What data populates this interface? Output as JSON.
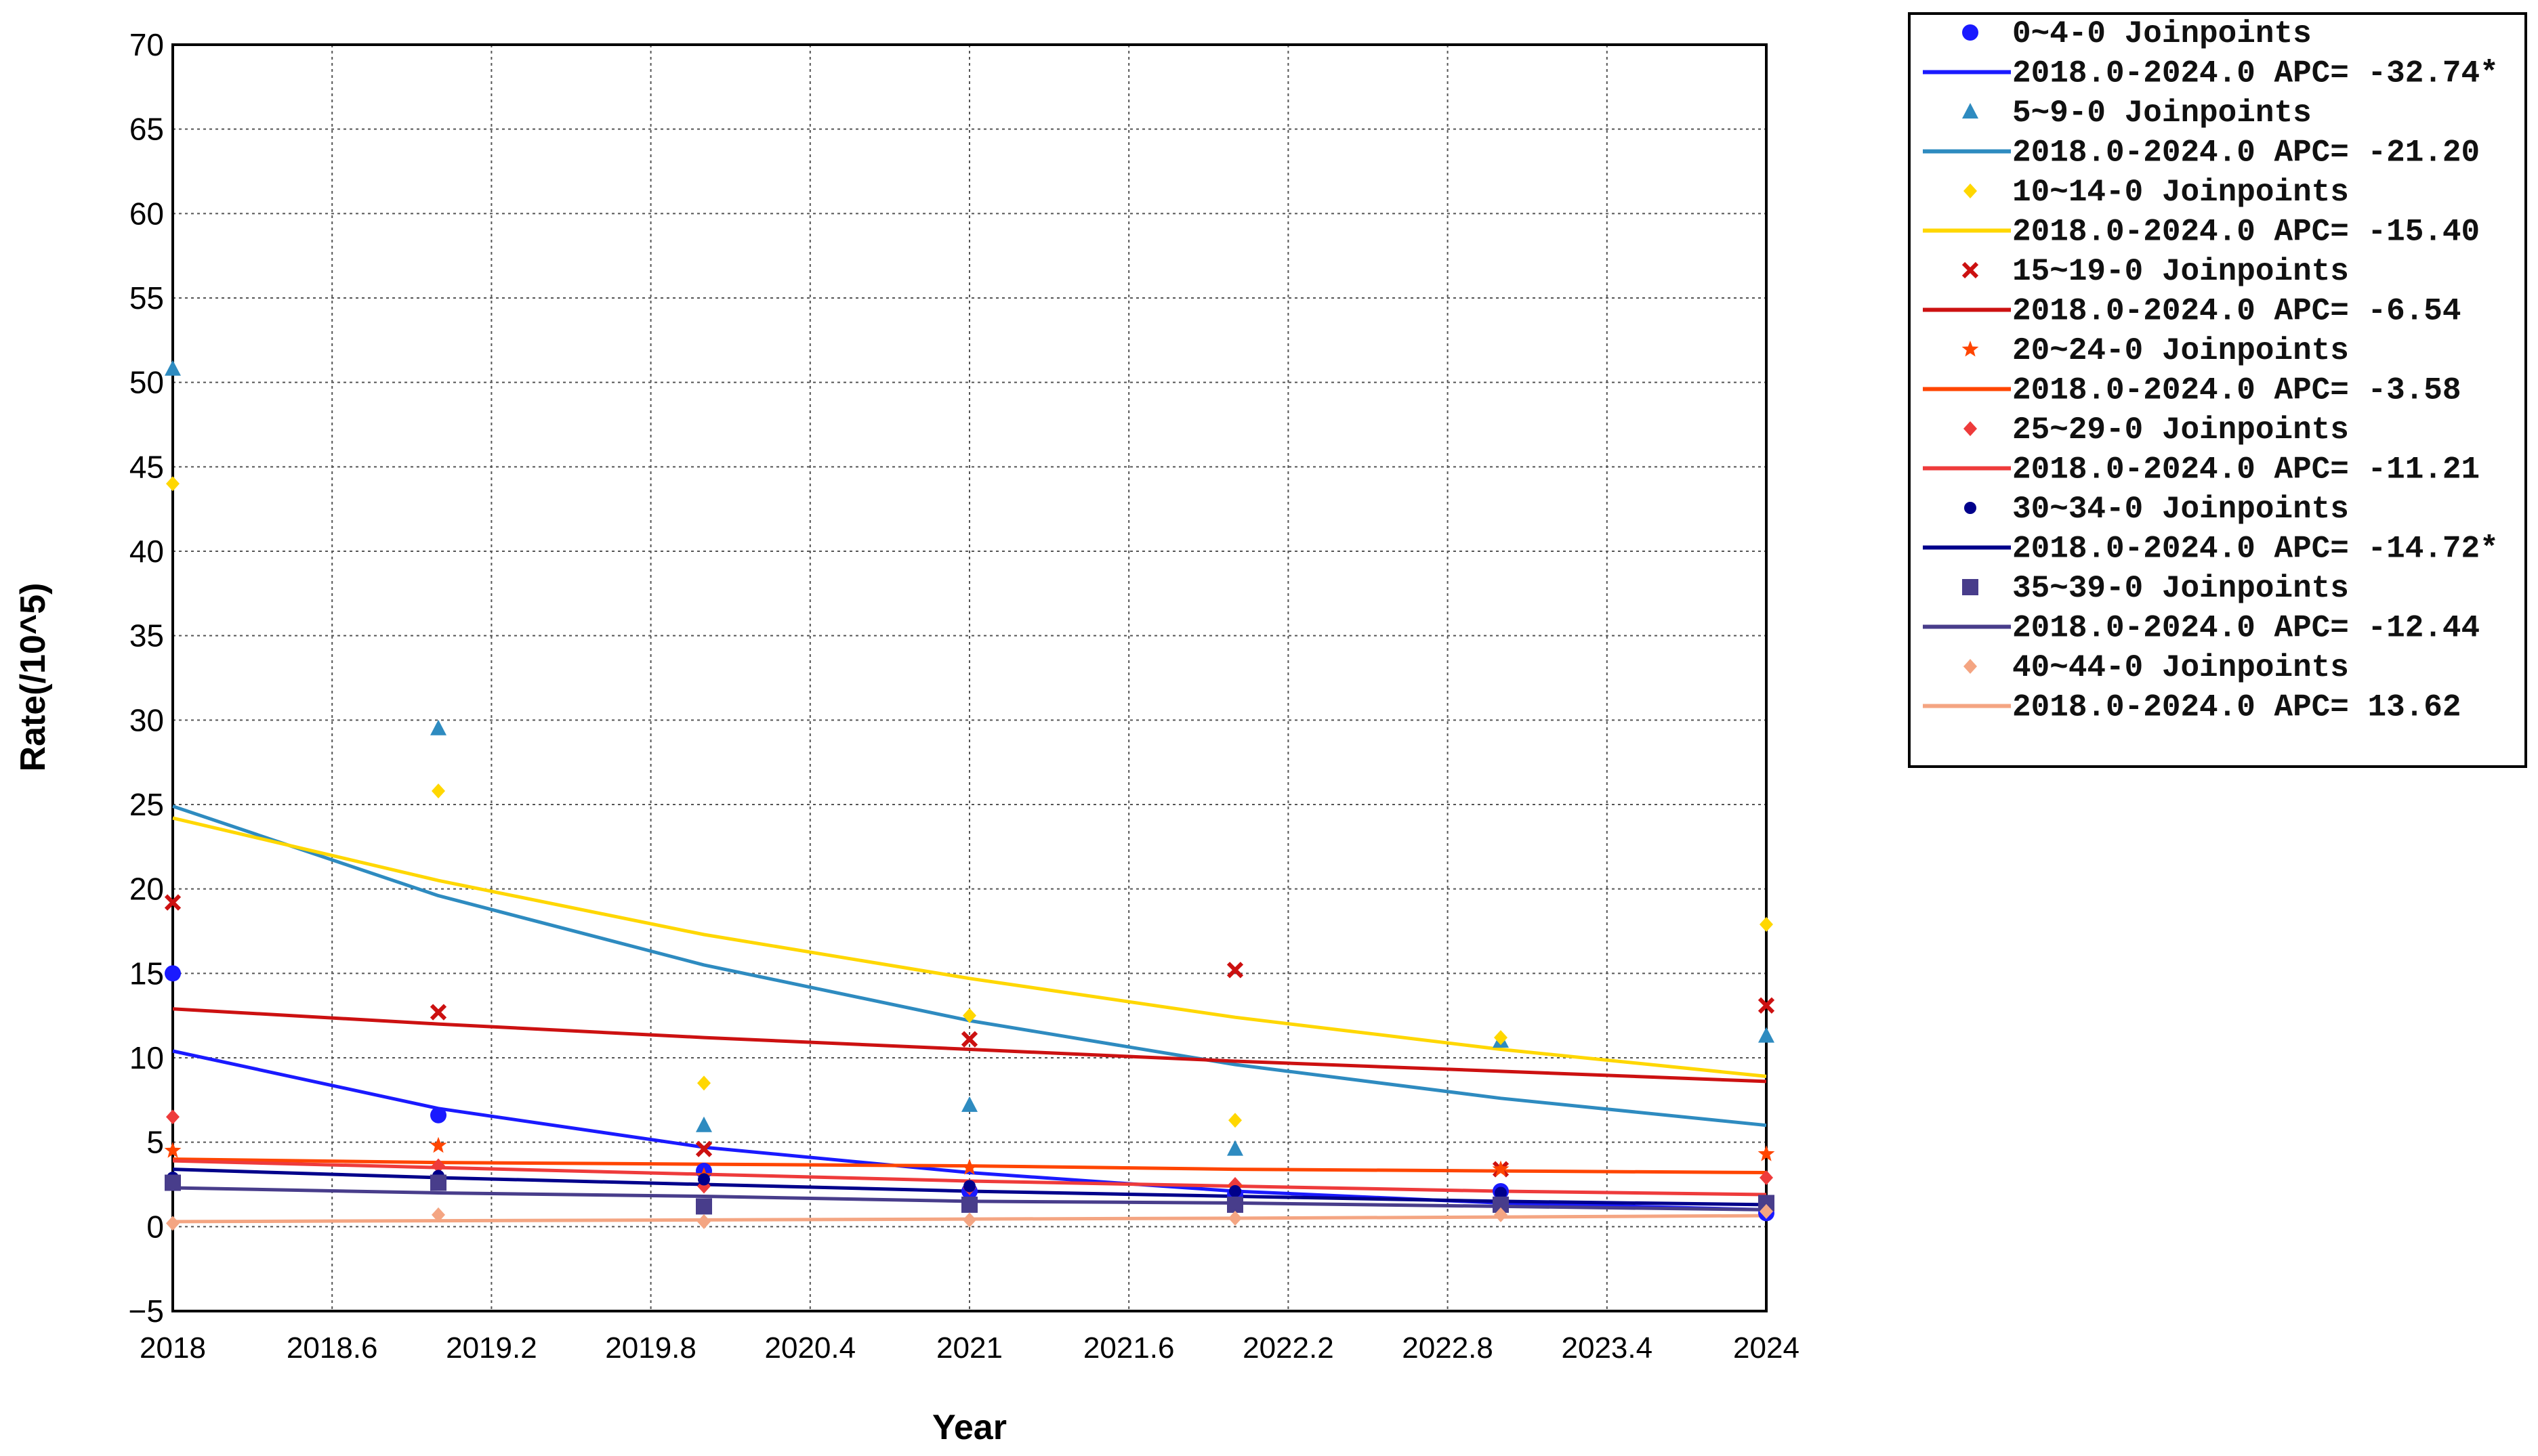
{
  "chart_data": {
    "type": "line",
    "title": "",
    "xlabel": "Year",
    "ylabel": "Rate(/10^5)",
    "xlim": [
      2018,
      2024
    ],
    "ylim": [
      -5,
      70
    ],
    "x_ticks": [
      "2018",
      "2018.6",
      "2019.2",
      "2019.8",
      "2020.4",
      "2021",
      "2021.6",
      "2022.2",
      "2022.8",
      "2023.4",
      "2024"
    ],
    "y_ticks": [
      "70",
      "65",
      "60",
      "55",
      "50",
      "45",
      "40",
      "35",
      "30",
      "25",
      "20",
      "15",
      "10",
      "5",
      "0",
      "−5"
    ],
    "grid": true,
    "legend_position": "top-right outside",
    "x": [
      2018,
      2019,
      2020,
      2021,
      2022,
      2023,
      2024
    ],
    "series": [
      {
        "name": "0~4-0 Joinpoints",
        "fit_label": "2018.0-2024.0 APC= -32.74*",
        "apc": -32.74,
        "color": "#1a1aff",
        "marker": "circle",
        "observed": [
          15.0,
          6.6,
          3.3,
          2.1,
          1.9,
          2.1,
          0.8
        ],
        "fit": [
          10.4,
          7.0,
          4.7,
          3.2,
          2.1,
          1.4,
          1.0
        ]
      },
      {
        "name": "5~9-0 Joinpoints",
        "fit_label": "2018.0-2024.0 APC= -21.20",
        "apc": -21.2,
        "color": "#2e8bc0",
        "marker": "triangle",
        "observed": [
          50.8,
          29.5,
          6.0,
          7.2,
          4.6,
          11.0,
          11.3
        ],
        "fit": [
          24.9,
          19.6,
          15.5,
          12.2,
          9.6,
          7.6,
          6.0
        ]
      },
      {
        "name": "10~14-0 Joinpoints",
        "fit_label": "2018.0-2024.0 APC= -15.40",
        "apc": -15.4,
        "color": "#ffd700",
        "marker": "diamond",
        "observed": [
          44.0,
          25.8,
          8.5,
          12.5,
          6.3,
          11.2,
          17.9
        ],
        "fit": [
          24.2,
          20.5,
          17.3,
          14.7,
          12.4,
          10.5,
          8.9
        ]
      },
      {
        "name": "15~19-0 Joinpoints",
        "fit_label": "2018.0-2024.0 APC= -6.54",
        "apc": -6.54,
        "color": "#cc1111",
        "marker": "x",
        "observed": [
          19.2,
          12.7,
          4.6,
          11.1,
          15.2,
          3.4,
          13.1
        ],
        "fit": [
          12.9,
          12.0,
          11.2,
          10.5,
          9.8,
          9.2,
          8.6
        ]
      },
      {
        "name": "20~24-0 Joinpoints",
        "fit_label": "2018.0-2024.0 APC= -3.58",
        "apc": -3.58,
        "color": "#ff4500",
        "marker": "star",
        "observed": [
          4.5,
          4.8,
          3.0,
          3.5,
          2.3,
          3.4,
          4.3
        ],
        "fit": [
          4.0,
          3.8,
          3.7,
          3.6,
          3.4,
          3.3,
          3.2
        ]
      },
      {
        "name": "25~29-0 Joinpoints",
        "fit_label": "2018.0-2024.0 APC= -11.21",
        "apc": -11.21,
        "color": "#ee3b3b",
        "marker": "diamond",
        "observed": [
          6.5,
          3.6,
          2.4,
          2.3,
          2.5,
          1.0,
          2.9
        ],
        "fit": [
          3.9,
          3.5,
          3.1,
          2.7,
          2.4,
          2.1,
          1.9
        ]
      },
      {
        "name": "30~34-0 Joinpoints",
        "fit_label": "2018.0-2024.0 APC= -14.72*",
        "apc": -14.72,
        "color": "#00008b",
        "marker": "circle-small",
        "observed": [
          2.9,
          3.0,
          2.8,
          2.4,
          2.1,
          2.0,
          1.3
        ],
        "fit": [
          3.4,
          2.9,
          2.5,
          2.1,
          1.8,
          1.5,
          1.3
        ]
      },
      {
        "name": "35~39-0 Joinpoints",
        "fit_label": "2018.0-2024.0 APC= -12.44",
        "apc": -12.44,
        "color": "#483d8b",
        "marker": "square",
        "observed": [
          2.6,
          2.6,
          1.2,
          1.3,
          1.3,
          1.3,
          1.4
        ],
        "fit": [
          2.3,
          2.0,
          1.8,
          1.5,
          1.4,
          1.2,
          1.0
        ]
      },
      {
        "name": "40~44-0 Joinpoints",
        "fit_label": "2018.0-2024.0 APC= 13.62",
        "apc": 13.62,
        "color": "#f4a582",
        "marker": "diamond",
        "observed": [
          0.2,
          0.7,
          0.3,
          0.4,
          0.5,
          0.7,
          0.9
        ],
        "fit": [
          0.3,
          0.35,
          0.4,
          0.45,
          0.5,
          0.57,
          0.65
        ]
      }
    ]
  }
}
